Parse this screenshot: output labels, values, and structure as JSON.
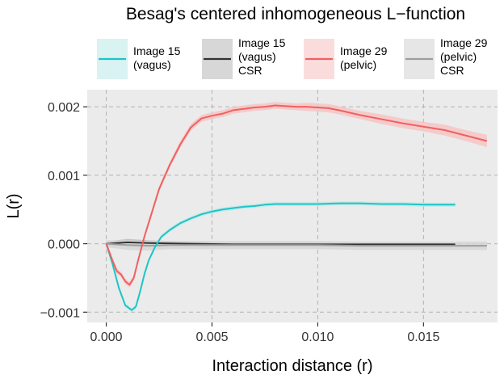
{
  "chart_data": {
    "type": "line",
    "title": "Besag's centered inhomogeneous L−function",
    "xlabel": "Interaction distance (r)",
    "ylabel": "L(r)",
    "xlim": [
      -0.0009,
      0.0185
    ],
    "ylim": [
      -0.00115,
      0.00225
    ],
    "x_ticks": [
      0.0,
      0.005,
      0.01,
      0.015
    ],
    "x_tick_labels": [
      "0.000",
      "0.005",
      "0.010",
      "0.015"
    ],
    "y_ticks": [
      -0.001,
      0.0,
      0.001,
      0.002
    ],
    "y_tick_labels": [
      "−0.001",
      "0.000",
      "0.001",
      "0.002"
    ],
    "grid": true,
    "legend_position": "top",
    "series": [
      {
        "name": "Image 15 (vagus)",
        "legend_lines": [
          "Image 15",
          "(vagus)"
        ],
        "color": "#1fc4c4",
        "band_color": "#bfe9e9",
        "x": [
          0,
          0.0003,
          0.0006,
          0.0009,
          0.0012,
          0.0014,
          0.0016,
          0.0018,
          0.002,
          0.0023,
          0.0026,
          0.003,
          0.0035,
          0.004,
          0.0045,
          0.005,
          0.0055,
          0.006,
          0.0065,
          0.007,
          0.0075,
          0.008,
          0.009,
          0.01,
          0.011,
          0.012,
          0.013,
          0.014,
          0.015,
          0.0165
        ],
        "y": [
          0,
          -0.0003,
          -0.00065,
          -0.0009,
          -0.00097,
          -0.00092,
          -0.0007,
          -0.00045,
          -0.00025,
          -5e-05,
          0.0001,
          0.0002,
          0.0003,
          0.00037,
          0.00043,
          0.00047,
          0.0005,
          0.00052,
          0.00054,
          0.00055,
          0.00057,
          0.00058,
          0.00058,
          0.00058,
          0.00059,
          0.00059,
          0.00058,
          0.00058,
          0.00057,
          0.00057
        ],
        "band": [
          0,
          2e-05,
          3e-05,
          3e-05,
          3e-05,
          3e-05,
          3e-05,
          3e-05,
          3e-05,
          3e-05,
          3e-05,
          3e-05,
          3e-05,
          3e-05,
          3e-05,
          3e-05,
          3e-05,
          3e-05,
          3e-05,
          3e-05,
          3e-05,
          3e-05,
          3e-05,
          3e-05,
          3e-05,
          3e-05,
          3e-05,
          3e-05,
          3e-05,
          3e-05
        ]
      },
      {
        "name": "Image 15 (vagus) CSR",
        "legend_lines": [
          "Image 15",
          "(vagus)",
          "CSR"
        ],
        "color": "#333333",
        "band_color": "#bdbdbd",
        "x": [
          0,
          0.001,
          0.002,
          0.004,
          0.006,
          0.008,
          0.01,
          0.012,
          0.014,
          0.0165
        ],
        "y": [
          0,
          2e-05,
          1e-05,
          0,
          -1e-05,
          -1e-05,
          -1e-05,
          -1e-05,
          -1e-05,
          -1e-05
        ],
        "band": [
          3e-05,
          5e-05,
          4e-05,
          3e-05,
          3e-05,
          3e-05,
          3e-05,
          3e-05,
          3e-05,
          3e-05
        ]
      },
      {
        "name": "Image 29 (pelvic)",
        "legend_lines": [
          "Image 29",
          "(pelvic)"
        ],
        "color": "#f06060",
        "band_color": "#f7c4c4",
        "x": [
          0,
          0.0003,
          0.0005,
          0.0007,
          0.0009,
          0.0011,
          0.0013,
          0.0015,
          0.0018,
          0.0021,
          0.0025,
          0.003,
          0.0035,
          0.004,
          0.0045,
          0.005,
          0.0055,
          0.006,
          0.0065,
          0.007,
          0.0075,
          0.008,
          0.0085,
          0.009,
          0.0095,
          0.01,
          0.0105,
          0.011,
          0.012,
          0.013,
          0.014,
          0.015,
          0.016,
          0.017,
          0.018
        ],
        "y": [
          0,
          -0.00025,
          -0.0004,
          -0.00045,
          -0.00055,
          -0.0006,
          -0.0005,
          -0.00025,
          0.0001,
          0.0004,
          0.0008,
          0.00115,
          0.00145,
          0.0017,
          0.00183,
          0.00187,
          0.0019,
          0.00195,
          0.00197,
          0.00199,
          0.002,
          0.00202,
          0.00201,
          0.002,
          0.002,
          0.00199,
          0.00198,
          0.00195,
          0.00188,
          0.00182,
          0.00176,
          0.00171,
          0.00166,
          0.00158,
          0.0015
        ],
        "band": [
          0,
          3e-05,
          4e-05,
          4e-05,
          4e-05,
          4e-05,
          4e-05,
          4e-05,
          4e-05,
          4e-05,
          4e-05,
          4e-05,
          5e-05,
          5e-05,
          5e-05,
          5e-05,
          5e-05,
          5e-05,
          5e-05,
          5e-05,
          5e-05,
          5e-05,
          5e-05,
          5e-05,
          6e-05,
          6e-05,
          6e-05,
          6e-05,
          6e-05,
          7e-05,
          7e-05,
          7e-05,
          8e-05,
          8e-05,
          9e-05
        ]
      },
      {
        "name": "Image 29 (pelvic) CSR",
        "legend_lines": [
          "Image 29",
          "(pelvic)",
          "CSR"
        ],
        "color": "#9e9e9e",
        "band_color": "#d6d6d6",
        "x": [
          0,
          0.001,
          0.002,
          0.003,
          0.004,
          0.006,
          0.008,
          0.01,
          0.012,
          0.014,
          0.016,
          0.018
        ],
        "y": [
          0,
          -2e-05,
          -3e-05,
          -2e-05,
          -2e-05,
          -2e-05,
          -2e-05,
          -2e-05,
          -3e-05,
          -3e-05,
          -3e-05,
          -3e-05
        ],
        "band": [
          5e-05,
          7e-05,
          7e-05,
          6e-05,
          6e-05,
          6e-05,
          6e-05,
          6e-05,
          6e-05,
          6e-05,
          6e-05,
          6e-05
        ]
      }
    ]
  }
}
